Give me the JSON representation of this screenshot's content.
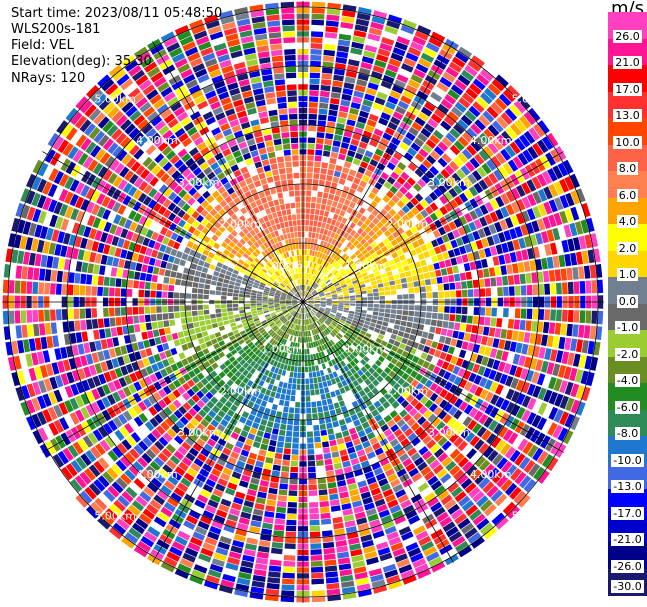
{
  "header": {
    "start_time": "Start time: 2023/08/11 05:48:50",
    "instrument": "WLS200s-181",
    "field": "Field: VEL",
    "elevation": "Elevation(deg): 35.30",
    "nrays": "NRays: 120"
  },
  "chart_data": {
    "type": "heatmap",
    "projection": "polar-ppi",
    "field": "VEL",
    "n_rays": 120,
    "range_rings_km": [
      1,
      2,
      3,
      4,
      5
    ],
    "ring_labels": [
      "1.00km",
      "2.00km",
      "3.00km",
      "4.00km",
      "5.00km"
    ],
    "spoke_interval_deg": 30,
    "colorbar": {
      "unit": "m/s",
      "labels": [
        "26.0",
        "21.0",
        "17.0",
        "13.0",
        "10.0",
        "8.0",
        "6.0",
        "4.0",
        "2.0",
        "1.0",
        "0.0",
        "-1.0",
        "-2.0",
        "-4.0",
        "-6.0",
        "-8.0",
        "-10.0",
        "-13.0",
        "-17.0",
        "-21.0",
        "-26.0",
        "-30.0"
      ],
      "colors": [
        "#ff40c0",
        "#ff1493",
        "#ff0000",
        "#ff3030",
        "#ff4500",
        "#ff6347",
        "#ff7f50",
        "#ffa500",
        "#ffff00",
        "#ffd700",
        "#708090",
        "#696969",
        "#9acd32",
        "#6b8e23",
        "#228b22",
        "#2e8b57",
        "#1e78d0",
        "#4169e1",
        "#0000ff",
        "#0000cd",
        "#00008b",
        "#191970"
      ]
    }
  }
}
